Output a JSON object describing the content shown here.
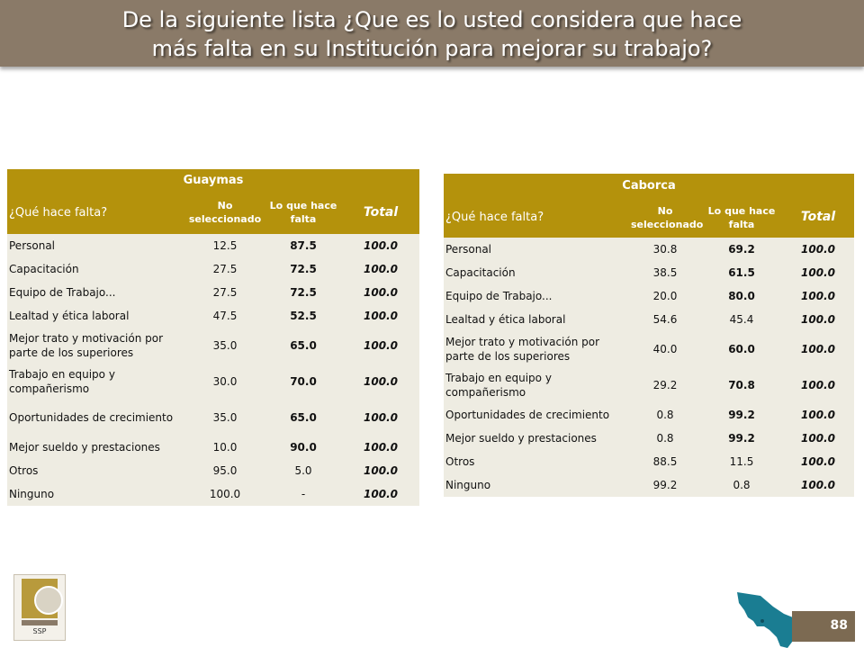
{
  "title": {
    "line1": "De la siguiente lista ¿Que es lo usted considera que hace",
    "line2": "más falta en su Institución para mejorar su trabajo?"
  },
  "tables": [
    {
      "city": "Guaymas",
      "col_question": "¿Qué hace falta?",
      "col_no": "No seleccionado",
      "col_si": "Lo que hace falta",
      "col_total": "Total",
      "rows": [
        {
          "label": "Personal",
          "no": "12.5",
          "si": "87.5",
          "total": "100.0"
        },
        {
          "label": "Capacitación",
          "no": "27.5",
          "si": "72.5",
          "total": "100.0"
        },
        {
          "label": "Equipo de Trabajo...",
          "no": "27.5",
          "si": "72.5",
          "total": "100.0"
        },
        {
          "label": "Lealtad y ética laboral",
          "no": "47.5",
          "si": "52.5",
          "total": "100.0"
        },
        {
          "label": "Mejor trato y motivación por parte de los superiores",
          "no": "35.0",
          "si": "65.0",
          "total": "100.0"
        },
        {
          "label": "Trabajo en equipo y compañerismo",
          "no": "30.0",
          "si": "70.0",
          "total": "100.0"
        },
        {
          "label": "Oportunidades de crecimiento",
          "no": "35.0",
          "si": "65.0",
          "total": "100.0"
        },
        {
          "label": "Mejor sueldo y prestaciones",
          "no": "10.0",
          "si": "90.0",
          "total": "100.0"
        },
        {
          "label": "Otros",
          "no": "95.0",
          "si": "5.0",
          "total": "100.0"
        },
        {
          "label": "Ninguno",
          "no": "100.0",
          "si": "-",
          "total": "100.0"
        }
      ]
    },
    {
      "city": "Caborca",
      "col_question": "¿Qué hace falta?",
      "col_no": "No seleccionado",
      "col_si": "Lo que hace falta",
      "col_total": "Total",
      "rows": [
        {
          "label": "Personal",
          "no": "30.8",
          "si": "69.2",
          "total": "100.0"
        },
        {
          "label": "Capacitación",
          "no": "38.5",
          "si": "61.5",
          "total": "100.0"
        },
        {
          "label": "Equipo de Trabajo...",
          "no": "20.0",
          "si": "80.0",
          "total": "100.0"
        },
        {
          "label": "Lealtad y ética laboral",
          "no": "54.6",
          "si": "45.4",
          "total": "100.0"
        },
        {
          "label": "Mejor trato y motivación por parte de los superiores",
          "no": "40.0",
          "si": "60.0",
          "total": "100.0"
        },
        {
          "label": "Trabajo en equipo y compañerismo",
          "no": "29.2",
          "si": "70.8",
          "total": "100.0"
        },
        {
          "label": "Oportunidades de crecimiento",
          "no": "0.8",
          "si": "99.2",
          "total": "100.0"
        },
        {
          "label": "Mejor sueldo y prestaciones",
          "no": "0.8",
          "si": "99.2",
          "total": "100.0"
        },
        {
          "label": "Otros",
          "no": "88.5",
          "si": "11.5",
          "total": "100.0"
        },
        {
          "label": "Ninguno",
          "no": "99.2",
          "si": "0.8",
          "total": "100.0"
        }
      ]
    }
  ],
  "logo_text": "SSP",
  "page_number": "88",
  "colors": {
    "title_bar": "#8a7a68",
    "header_gold": "#b4920c",
    "row_bg": "#eeece2",
    "map_teal": "#1a7d92"
  }
}
